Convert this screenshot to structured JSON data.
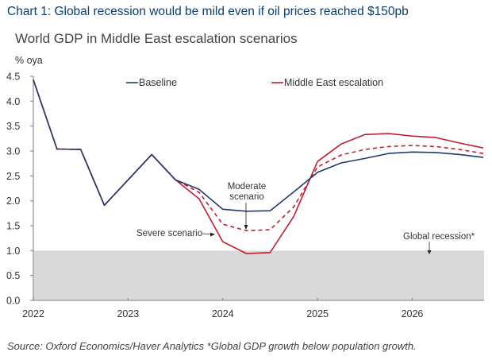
{
  "header": {
    "title": "Chart 1: Global recession would be mild even if oil prices reached $150pb",
    "subtitle": "World GDP in Middle East escalation scenarios"
  },
  "footer": {
    "source": "Source: Oxford Economics/Haver Analytics *Global GDP growth below population growth."
  },
  "chart_data": {
    "type": "line",
    "title": "World GDP in Middle East escalation scenarios",
    "ylabel": "% oya",
    "xlabel": "",
    "ylim": [
      0,
      4.5
    ],
    "yticks": [
      "0.0",
      "0.5",
      "1.0",
      "1.5",
      "2.0",
      "2.5",
      "3.0",
      "3.5",
      "4.0",
      "4.5"
    ],
    "ytick_values": [
      0,
      0.5,
      1.0,
      1.5,
      2.0,
      2.5,
      3.0,
      3.5,
      4.0,
      4.5
    ],
    "xticks": [
      "2022",
      "2023",
      "2024",
      "2025",
      "2026"
    ],
    "xtick_values": [
      2022,
      2023,
      2024,
      2025,
      2026
    ],
    "xlim": [
      2022,
      2026.75
    ],
    "grid": false,
    "legend": {
      "placement": "top-center",
      "entries": [
        "Baseline",
        "Middle East escalation"
      ]
    },
    "x": [
      2022.0,
      2022.25,
      2022.5,
      2022.75,
      2023.0,
      2023.25,
      2023.5,
      2023.75,
      2024.0,
      2024.25,
      2024.5,
      2024.75,
      2025.0,
      2025.25,
      2025.5,
      2025.75,
      2026.0,
      2026.25,
      2026.5,
      2026.75
    ],
    "series": [
      {
        "name": "Baseline",
        "color": "#1f3a6e",
        "style": "solid",
        "values": [
          4.43,
          3.04,
          3.03,
          1.91,
          2.42,
          2.93,
          2.42,
          2.23,
          1.83,
          1.79,
          1.8,
          2.18,
          2.57,
          2.76,
          2.85,
          2.95,
          2.98,
          2.97,
          2.93,
          2.87
        ]
      },
      {
        "name": "Middle East escalation (Moderate scenario)",
        "color": "#c0202e",
        "style": "dashed",
        "values": [
          4.43,
          3.04,
          3.03,
          1.91,
          2.42,
          2.93,
          2.42,
          2.17,
          1.53,
          1.4,
          1.42,
          1.88,
          2.68,
          2.92,
          3.03,
          3.09,
          3.11,
          3.09,
          3.03,
          2.95
        ]
      },
      {
        "name": "Middle East escalation (Severe scenario)",
        "color": "#c0202e",
        "style": "solid",
        "values": [
          4.43,
          3.04,
          3.03,
          1.91,
          2.42,
          2.93,
          2.42,
          2.04,
          1.18,
          0.94,
          0.96,
          1.69,
          2.79,
          3.14,
          3.33,
          3.35,
          3.3,
          3.27,
          3.16,
          3.06
        ]
      }
    ],
    "shaded_region": {
      "label": "Global recession*",
      "from": 0.0,
      "to": 1.0,
      "color": "#d9d9d9"
    },
    "annotations": [
      {
        "text_lines": [
          "Moderate",
          "scenario"
        ],
        "points_to": "Middle East escalation (Moderate scenario)",
        "at_x": 2024.25
      },
      {
        "text": "Severe scenario",
        "points_to": "Middle East escalation (Severe scenario)",
        "at_x": 2024.0
      },
      {
        "text": "Global recession*",
        "points_to": "shaded_region",
        "at_x": 2026.2
      }
    ]
  }
}
